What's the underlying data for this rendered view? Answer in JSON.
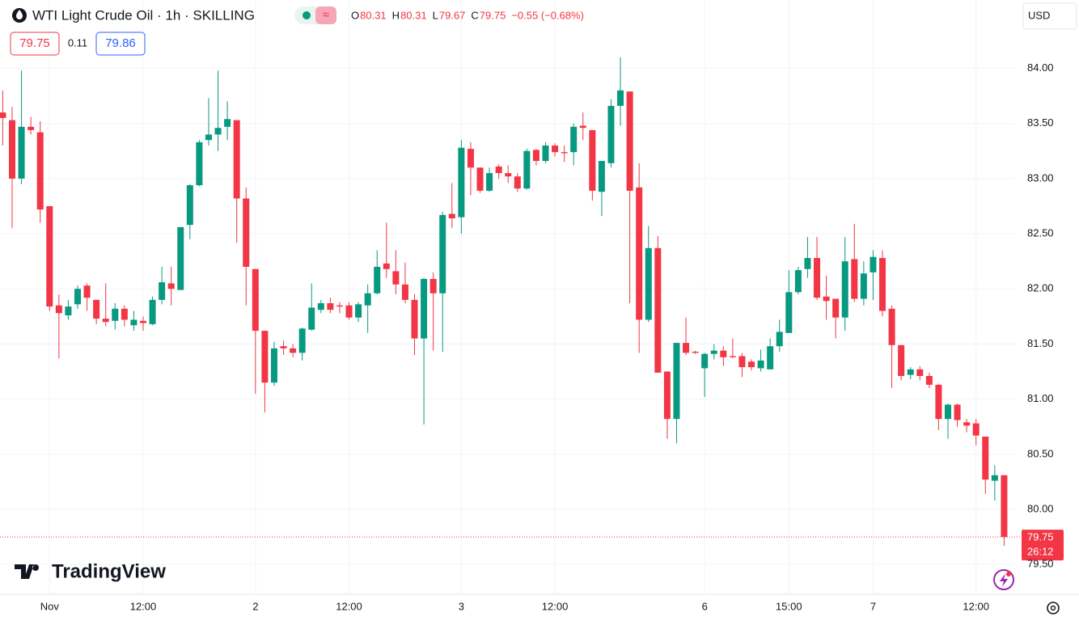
{
  "chart_data": {
    "type": "candlestick",
    "title": "WTI Light Crude Oil · 1h · SKILLING",
    "ohlc_letters": [
      "O",
      "H",
      "L",
      "C"
    ],
    "change": "−0.55 (−0.68%)",
    "quote": {
      "sell": 79.75,
      "spread": 0.11,
      "buy": 79.86
    },
    "currency": "USD",
    "countdown": "26:12",
    "brand": "TradingView",
    "up_color": "#089981",
    "down_color": "#f23645",
    "grid": true,
    "categories": [
      null,
      null,
      null,
      null,
      null,
      "Nov",
      null,
      null,
      null,
      null,
      null,
      null,
      null,
      null,
      null,
      "12:00",
      null,
      null,
      null,
      null,
      null,
      null,
      null,
      null,
      null,
      null,
      null,
      "2",
      null,
      null,
      null,
      null,
      null,
      null,
      null,
      null,
      null,
      "12:00",
      null,
      null,
      null,
      null,
      null,
      null,
      null,
      null,
      null,
      null,
      null,
      "3",
      null,
      null,
      null,
      null,
      null,
      null,
      null,
      null,
      null,
      "12:00",
      null,
      null,
      null,
      null,
      null,
      null,
      null,
      null,
      null,
      null,
      null,
      null,
      null,
      null,
      null,
      "6",
      null,
      null,
      null,
      null,
      null,
      null,
      null,
      null,
      "15:00",
      null,
      null,
      null,
      null,
      null,
      null,
      null,
      null,
      "7",
      null,
      null,
      null,
      null,
      null,
      null,
      null,
      null,
      null,
      null,
      "12:00",
      null,
      null,
      null
    ],
    "open": [
      83.6,
      83.53,
      83.0,
      83.47,
      83.42,
      82.75,
      81.85,
      81.76,
      81.86,
      82.03,
      81.9,
      81.73,
      81.71,
      81.82,
      81.67,
      81.71,
      81.68,
      81.9,
      82.05,
      81.99,
      82.58,
      82.94,
      83.35,
      83.4,
      83.47,
      83.53,
      82.82,
      82.18,
      81.62,
      81.15,
      81.48,
      81.46,
      81.42,
      81.63,
      81.81,
      81.87,
      81.85,
      81.85,
      81.74,
      81.85,
      81.96,
      82.23,
      82.16,
      82.04,
      81.9,
      81.55,
      82.09,
      81.96,
      82.68,
      82.65,
      83.27,
      83.1,
      82.89,
      83.11,
      83.05,
      83.02,
      82.91,
      83.26,
      83.16,
      83.3,
      83.24,
      83.24,
      83.48,
      83.44,
      82.88,
      83.14,
      83.66,
      83.79,
      82.92,
      81.72,
      82.37,
      81.25,
      80.82,
      81.51,
      81.43,
      81.28,
      81.41,
      81.44,
      81.39,
      81.39,
      81.34,
      81.28,
      81.27,
      81.48,
      81.6,
      81.97,
      82.18,
      82.28,
      81.93,
      81.91,
      81.74,
      82.27,
      81.91,
      82.15,
      82.28,
      81.82,
      81.49,
      81.22,
      81.27,
      81.21,
      81.13,
      80.82,
      80.95,
      80.79,
      80.78,
      80.66,
      80.26,
      80.31
    ],
    "high": [
      83.8,
      83.65,
      83.98,
      83.56,
      83.52,
      82.75,
      81.95,
      81.9,
      82.03,
      82.05,
      81.9,
      82.05,
      81.87,
      81.85,
      81.8,
      81.75,
      81.93,
      82.2,
      82.2,
      82.56,
      82.95,
      83.35,
      83.73,
      83.98,
      83.7,
      83.53,
      82.92,
      82.18,
      81.62,
      81.52,
      81.53,
      81.5,
      81.65,
      82.05,
      81.9,
      81.92,
      81.88,
      81.88,
      81.88,
      82.04,
      82.35,
      82.6,
      82.35,
      82.24,
      81.95,
      82.1,
      82.15,
      82.7,
      82.96,
      83.35,
      83.33,
      83.1,
      83.1,
      83.13,
      83.12,
      83.05,
      83.27,
      83.27,
      83.33,
      83.32,
      83.3,
      83.5,
      83.6,
      83.44,
      83.16,
      83.72,
      84.1,
      83.79,
      83.14,
      82.57,
      82.48,
      81.25,
      81.51,
      81.74,
      81.44,
      81.42,
      81.5,
      81.48,
      81.55,
      81.42,
      81.36,
      81.45,
      81.55,
      81.72,
      82.17,
      82.2,
      82.47,
      82.47,
      82.12,
      81.91,
      82.47,
      82.59,
      82.25,
      82.35,
      82.35,
      81.85,
      81.49,
      81.29,
      81.3,
      81.24,
      81.14,
      80.96,
      80.96,
      80.82,
      80.82,
      80.66,
      80.4,
      80.31
    ],
    "low": [
      83.3,
      82.55,
      82.95,
      83.4,
      82.6,
      81.8,
      81.37,
      81.72,
      81.82,
      81.8,
      81.68,
      81.66,
      81.63,
      81.66,
      81.62,
      81.62,
      81.67,
      81.86,
      81.85,
      81.99,
      82.45,
      82.93,
      83.3,
      83.25,
      83.35,
      82.42,
      81.85,
      81.05,
      80.88,
      81.12,
      81.4,
      81.38,
      81.35,
      81.62,
      81.78,
      81.78,
      81.78,
      81.72,
      81.7,
      81.6,
      81.95,
      82.1,
      81.95,
      81.87,
      81.4,
      80.77,
      81.44,
      81.43,
      82.55,
      82.5,
      82.85,
      82.87,
      82.88,
      83.0,
      82.96,
      82.88,
      82.9,
      83.12,
      83.14,
      83.2,
      83.15,
      83.12,
      83.35,
      82.8,
      82.66,
      83.1,
      83.48,
      81.87,
      81.42,
      81.7,
      81.24,
      80.64,
      80.6,
      81.4,
      81.41,
      81.02,
      81.36,
      81.3,
      81.37,
      81.2,
      81.26,
      81.25,
      81.27,
      81.43,
      81.6,
      81.95,
      82.1,
      81.9,
      81.72,
      81.55,
      81.62,
      81.88,
      81.85,
      81.9,
      81.75,
      81.1,
      81.17,
      81.18,
      81.17,
      81.1,
      80.72,
      80.64,
      80.75,
      80.7,
      80.58,
      80.14,
      80.08,
      79.67
    ],
    "close": [
      83.55,
      83.0,
      83.47,
      83.44,
      82.72,
      81.84,
      81.78,
      81.84,
      82.0,
      81.92,
      81.73,
      81.7,
      81.82,
      81.72,
      81.72,
      81.69,
      81.9,
      82.06,
      82.0,
      82.56,
      82.94,
      83.33,
      83.4,
      83.46,
      83.54,
      82.82,
      82.2,
      81.62,
      81.15,
      81.46,
      81.46,
      81.42,
      81.64,
      81.83,
      81.87,
      81.81,
      81.84,
      81.74,
      81.86,
      81.96,
      82.2,
      82.18,
      82.04,
      81.9,
      81.55,
      82.09,
      81.96,
      82.67,
      82.64,
      83.28,
      83.1,
      82.89,
      83.05,
      83.05,
      83.02,
      82.91,
      83.25,
      83.16,
      83.3,
      83.24,
      83.23,
      83.47,
      83.46,
      82.89,
      83.16,
      83.66,
      83.8,
      82.89,
      81.72,
      82.37,
      81.24,
      80.82,
      81.51,
      81.42,
      81.42,
      81.41,
      81.44,
      81.38,
      81.38,
      81.29,
      81.29,
      81.35,
      81.48,
      81.61,
      81.97,
      82.17,
      82.28,
      81.92,
      81.89,
      81.74,
      82.25,
      81.91,
      82.14,
      82.29,
      81.8,
      81.49,
      81.21,
      81.27,
      81.21,
      81.13,
      80.82,
      80.95,
      80.81,
      80.76,
      80.67,
      80.27,
      80.31,
      79.75
    ],
    "ylim": [
      79.23,
      84.62
    ],
    "yticks": [
      {
        "value": 79.5,
        "label": "79.50"
      },
      {
        "value": 80,
        "label": "80.00"
      },
      {
        "value": 80.5,
        "label": "80.50"
      },
      {
        "value": 81,
        "label": "81.00"
      },
      {
        "value": 81.5,
        "label": "81.50"
      },
      {
        "value": 82,
        "label": "82.00"
      },
      {
        "value": 82.5,
        "label": "82.50"
      },
      {
        "value": 83,
        "label": "83.00"
      },
      {
        "value": 83.5,
        "label": "83.50"
      },
      {
        "value": 84,
        "label": "84.00"
      }
    ]
  }
}
